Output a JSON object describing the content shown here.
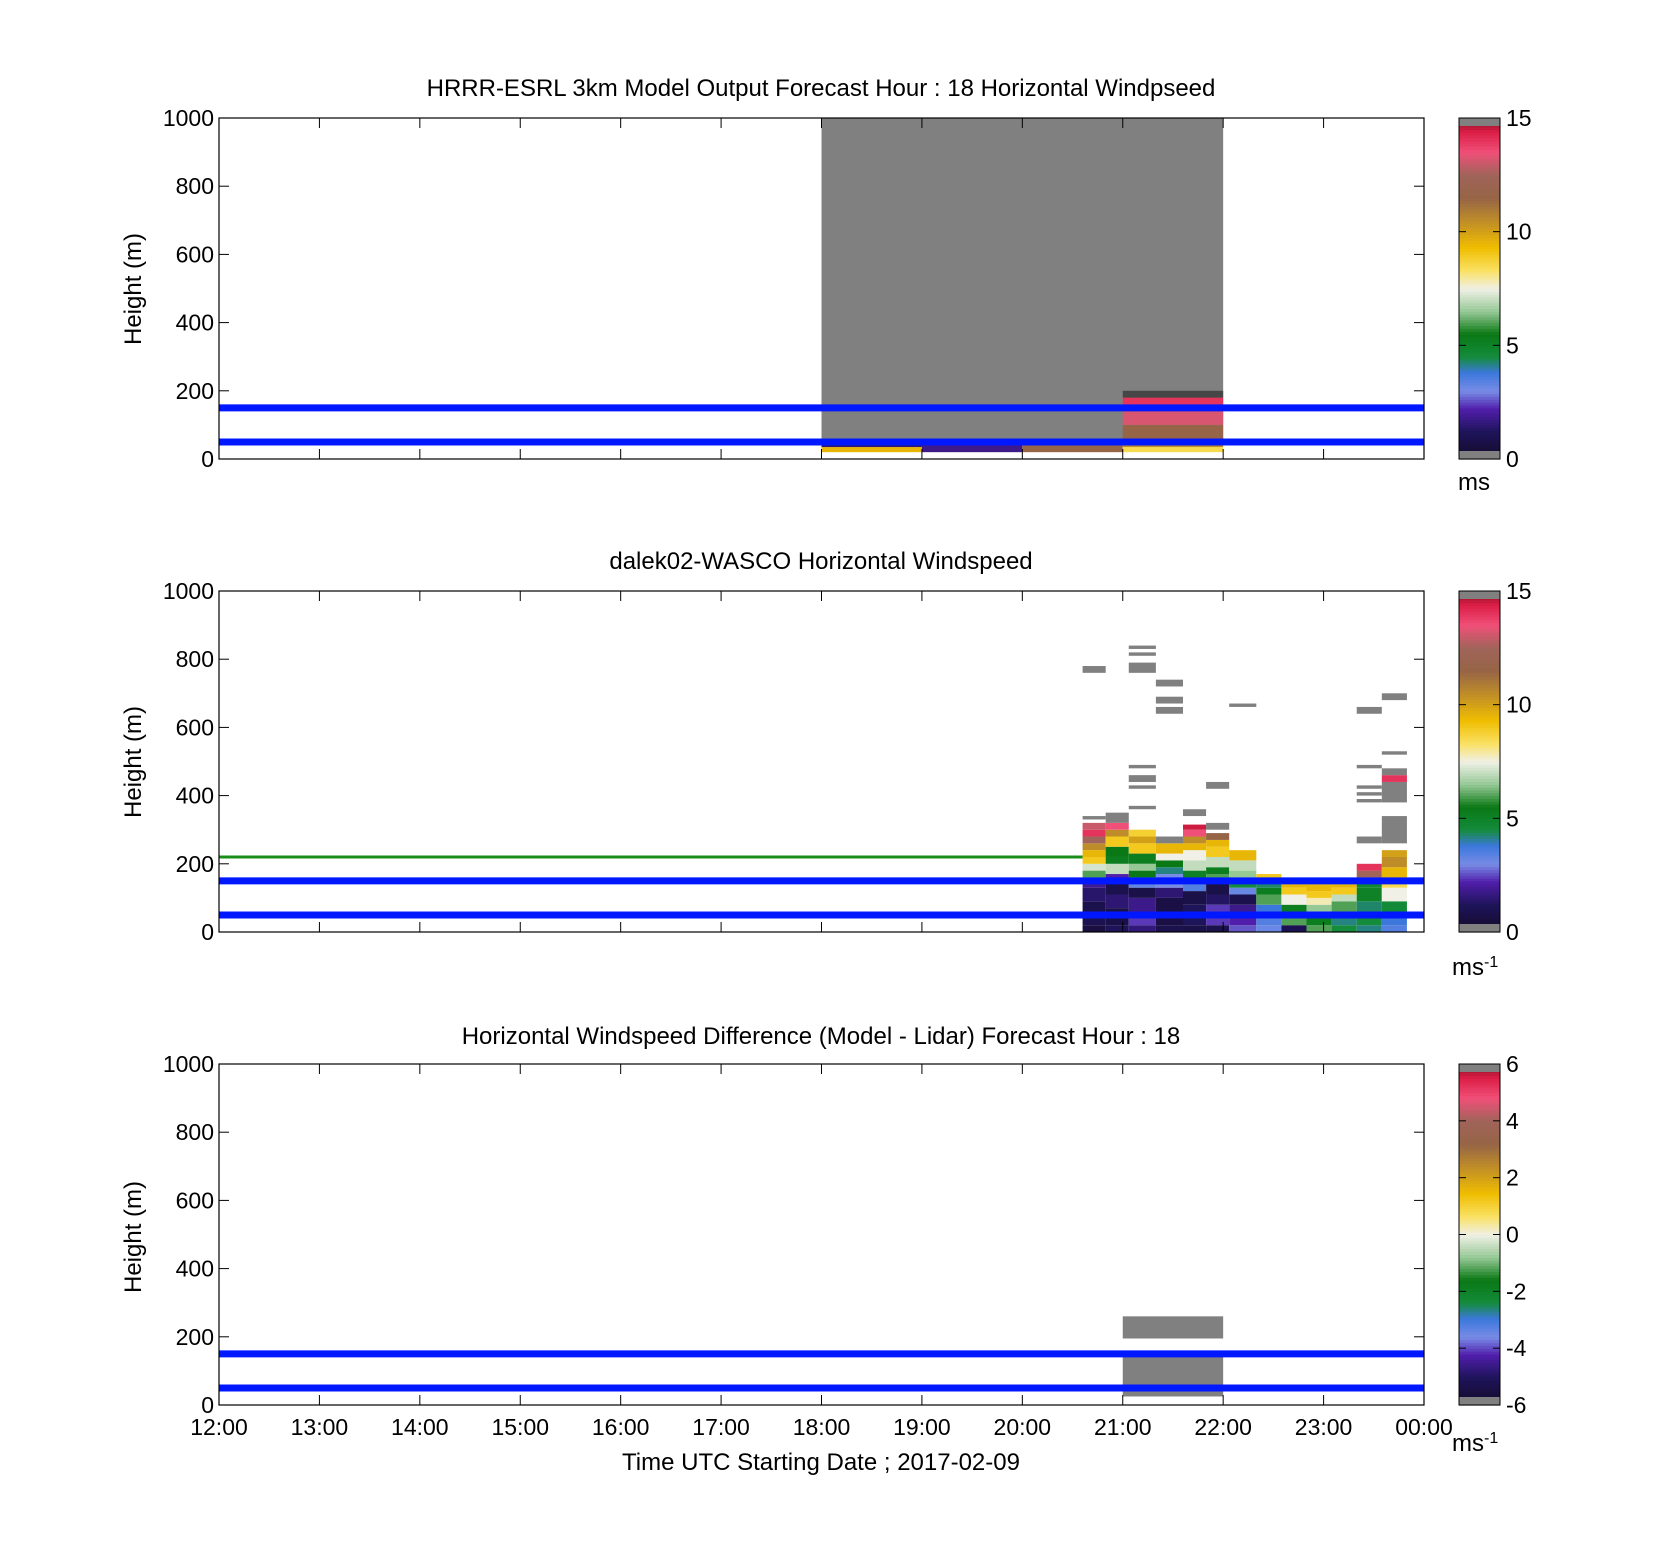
{
  "figure": {
    "shared_xlabel": "Time UTC  Starting Date ; 2017-02-09",
    "x_ticks": [
      "12:00",
      "13:00",
      "14:00",
      "15:00",
      "16:00",
      "17:00",
      "18:00",
      "19:00",
      "20:00",
      "21:00",
      "22:00",
      "23:00",
      "00:00"
    ],
    "y_ticks": [
      "0",
      "200",
      "400",
      "600",
      "800",
      "1000"
    ],
    "ylabel": "Height (m)",
    "reference_lines_m": [
      50,
      150
    ],
    "reference_line_color": "#0018ff",
    "missing_color": "#808080"
  },
  "chart_data": [
    {
      "type": "heatmap",
      "title": "HRRR-ESRL 3km Model Output   Forecast Hour : 18 Horizontal Windpseed",
      "ylabel": "Height (m)",
      "xlim_hours": [
        12,
        24
      ],
      "ylim": [
        0,
        1000
      ],
      "colorbar": {
        "min": 0,
        "max": 15,
        "ticks": [
          "0",
          "5",
          "10",
          "15"
        ],
        "label": "ms",
        "label_sup": "",
        "scheme": "speed"
      },
      "cells": [
        {
          "t0": 18,
          "t1": 22,
          "h0": 60,
          "h1": 1000,
          "v": null
        },
        {
          "t0": 18,
          "t1": 19,
          "h0": 50,
          "h1": 60,
          "v": 2.5
        },
        {
          "t0": 18,
          "t1": 19,
          "h0": 20,
          "h1": 35,
          "v": 9.5
        },
        {
          "t0": 18,
          "t1": 19,
          "h0": 35,
          "h1": 50,
          "v": 1.5
        },
        {
          "t0": 19,
          "t1": 20,
          "h0": 20,
          "h1": 45,
          "v": 1.8
        },
        {
          "t0": 19,
          "t1": 20,
          "h0": 45,
          "h1": 60,
          "v": 1.2
        },
        {
          "t0": 20,
          "t1": 21,
          "h0": 20,
          "h1": 45,
          "v": 11.5
        },
        {
          "t0": 20,
          "t1": 21,
          "h0": 45,
          "h1": 60,
          "v": 2.2
        },
        {
          "t0": 21,
          "t1": 22,
          "h0": 20,
          "h1": 35,
          "v": 8.5
        },
        {
          "t0": 21,
          "t1": 22,
          "h0": 35,
          "h1": 60,
          "v": 10.5
        },
        {
          "t0": 21,
          "t1": 22,
          "h0": 60,
          "h1": 100,
          "v": 11.5
        },
        {
          "t0": 21,
          "t1": 22,
          "h0": 100,
          "h1": 140,
          "v": 13.2
        },
        {
          "t0": 21,
          "t1": 22,
          "h0": 140,
          "h1": 180,
          "v": 14
        },
        {
          "t0": 21,
          "t1": 22,
          "h0": 180,
          "h1": 200,
          "v": 15
        }
      ]
    },
    {
      "type": "heatmap",
      "title": "dalek02-WASCO  Horizontal Windspeed",
      "ylabel": "Height (m)",
      "xlim_hours": [
        12,
        24
      ],
      "ylim": [
        0,
        1000
      ],
      "colorbar": {
        "min": 0,
        "max": 15,
        "ticks": [
          "0",
          "5",
          "10",
          "15"
        ],
        "label": "ms",
        "label_sup": "-1",
        "scheme": "speed"
      },
      "extra_line": {
        "height_m": 220,
        "t0": 12,
        "t1": 20.6,
        "color": "#1a8c1a"
      },
      "columns": [
        {
          "t0": 20.6,
          "t1": 20.83,
          "profile": [
            [
              0,
              20,
              0.6
            ],
            [
              20,
              60,
              1
            ],
            [
              60,
              90,
              0.9
            ],
            [
              90,
              130,
              1.4
            ],
            [
              130,
              160,
              1.9
            ],
            [
              160,
              180,
              6
            ],
            [
              180,
              200,
              7.2
            ],
            [
              200,
              220,
              9
            ],
            [
              220,
              240,
              9.5
            ],
            [
              240,
              260,
              10.5
            ],
            [
              260,
              280,
              12.5
            ],
            [
              280,
              300,
              14
            ],
            [
              300,
              320,
              13
            ],
            [
              330,
              340,
              null
            ],
            [
              760,
              780,
              null
            ]
          ]
        },
        {
          "t0": 20.83,
          "t1": 21.06,
          "profile": [
            [
              0,
              20,
              1.2
            ],
            [
              20,
              70,
              0.8
            ],
            [
              70,
              110,
              1.5
            ],
            [
              110,
              150,
              0.9
            ],
            [
              150,
              170,
              2.2
            ],
            [
              170,
              200,
              7
            ],
            [
              200,
              220,
              5.2
            ],
            [
              220,
              250,
              5.5
            ],
            [
              250,
              280,
              9
            ],
            [
              280,
              300,
              10.5
            ],
            [
              300,
              320,
              13.5
            ],
            [
              320,
              350,
              null
            ]
          ]
        },
        {
          "t0": 21.06,
          "t1": 21.33,
          "profile": [
            [
              0,
              20,
              1.6
            ],
            [
              20,
              60,
              2.4
            ],
            [
              60,
              100,
              1.8
            ],
            [
              100,
              130,
              0.8
            ],
            [
              130,
              160,
              3.3
            ],
            [
              160,
              180,
              5.5
            ],
            [
              180,
              200,
              6.5
            ],
            [
              200,
              230,
              5.2
            ],
            [
              230,
              260,
              9
            ],
            [
              260,
              280,
              10
            ],
            [
              280,
              300,
              8.8
            ],
            [
              360,
              370,
              null
            ],
            [
              420,
              430,
              null
            ],
            [
              440,
              460,
              null
            ],
            [
              480,
              490,
              null
            ],
            [
              760,
              790,
              null
            ],
            [
              810,
              820,
              null
            ],
            [
              830,
              840,
              null
            ]
          ]
        },
        {
          "t0": 21.33,
          "t1": 21.6,
          "profile": [
            [
              0,
              20,
              0.9
            ],
            [
              20,
              100,
              0.7
            ],
            [
              100,
              130,
              1.5
            ],
            [
              130,
              170,
              3
            ],
            [
              170,
              190,
              4.2
            ],
            [
              190,
              210,
              5.5
            ],
            [
              210,
              230,
              7.5
            ],
            [
              230,
              260,
              9.5
            ],
            [
              260,
              280,
              null
            ],
            [
              640,
              660,
              null
            ],
            [
              670,
              690,
              null
            ],
            [
              720,
              740,
              null
            ]
          ]
        },
        {
          "t0": 21.6,
          "t1": 21.83,
          "profile": [
            [
              0,
              20,
              0.8
            ],
            [
              20,
              80,
              1.2
            ],
            [
              80,
              120,
              0.8
            ],
            [
              120,
              150,
              3.5
            ],
            [
              150,
              180,
              5
            ],
            [
              180,
              210,
              7
            ],
            [
              210,
              240,
              7.5
            ],
            [
              240,
              260,
              9.5
            ],
            [
              260,
              280,
              10.5
            ],
            [
              280,
              300,
              13.5
            ],
            [
              300,
              315,
              14.5
            ],
            [
              340,
              360,
              null
            ]
          ]
        },
        {
          "t0": 21.83,
          "t1": 22.06,
          "profile": [
            [
              0,
              20,
              0.9
            ],
            [
              20,
              80,
              2.4
            ],
            [
              80,
              110,
              1.3
            ],
            [
              110,
              150,
              0.8
            ],
            [
              150,
              170,
              6
            ],
            [
              170,
              190,
              5.2
            ],
            [
              190,
              220,
              7
            ],
            [
              220,
              250,
              9
            ],
            [
              250,
              270,
              9.5
            ],
            [
              270,
              290,
              11.5
            ],
            [
              300,
              320,
              null
            ],
            [
              420,
              440,
              null
            ]
          ]
        },
        {
          "t0": 22.06,
          "t1": 22.33,
          "profile": [
            [
              0,
              20,
              2.6
            ],
            [
              20,
              50,
              2.2
            ],
            [
              50,
              80,
              1.8
            ],
            [
              80,
              110,
              0.9
            ],
            [
              110,
              130,
              3.2
            ],
            [
              130,
              160,
              4.5
            ],
            [
              160,
              180,
              6.5
            ],
            [
              180,
              210,
              7
            ],
            [
              210,
              240,
              9.5
            ],
            [
              660,
              670,
              null
            ]
          ]
        },
        {
          "t0": 22.33,
          "t1": 22.58,
          "profile": [
            [
              0,
              20,
              3.2
            ],
            [
              20,
              50,
              3.5
            ],
            [
              50,
              80,
              3.8
            ],
            [
              80,
              110,
              6
            ],
            [
              110,
              130,
              5.2
            ],
            [
              130,
              150,
              4.3
            ],
            [
              150,
              170,
              9
            ]
          ]
        },
        {
          "t0": 22.58,
          "t1": 22.83,
          "profile": [
            [
              0,
              20,
              1
            ],
            [
              20,
              50,
              6
            ],
            [
              50,
              80,
              5.2
            ],
            [
              80,
              110,
              7.5
            ],
            [
              110,
              130,
              9
            ],
            [
              130,
              140,
              9.5
            ]
          ]
        },
        {
          "t0": 22.83,
          "t1": 23.08,
          "profile": [
            [
              0,
              20,
              6
            ],
            [
              20,
              50,
              5.2
            ],
            [
              50,
              80,
              6.5
            ],
            [
              80,
              100,
              7.8
            ],
            [
              100,
              120,
              9
            ],
            [
              120,
              140,
              9.5
            ]
          ]
        },
        {
          "t0": 23.08,
          "t1": 23.33,
          "profile": [
            [
              0,
              20,
              4.5
            ],
            [
              20,
              60,
              4.2
            ],
            [
              60,
              90,
              6
            ],
            [
              90,
              110,
              7
            ],
            [
              110,
              130,
              9
            ],
            [
              130,
              140,
              9.5
            ]
          ]
        },
        {
          "t0": 23.33,
          "t1": 23.58,
          "profile": [
            [
              0,
              20,
              4.2
            ],
            [
              20,
              60,
              4.5
            ],
            [
              60,
              90,
              4.3
            ],
            [
              90,
              130,
              5
            ],
            [
              130,
              160,
              4.7
            ],
            [
              160,
              180,
              12.5
            ],
            [
              180,
              200,
              14
            ],
            [
              260,
              280,
              null
            ],
            [
              380,
              390,
              null
            ],
            [
              400,
              410,
              null
            ],
            [
              420,
              430,
              null
            ],
            [
              480,
              490,
              null
            ],
            [
              640,
              660,
              null
            ]
          ]
        },
        {
          "t0": 23.58,
          "t1": 23.83,
          "profile": [
            [
              0,
              20,
              3.5
            ],
            [
              20,
              50,
              3.8
            ],
            [
              50,
              90,
              4.6
            ],
            [
              90,
              130,
              7.5
            ],
            [
              130,
              160,
              8.5
            ],
            [
              160,
              190,
              9.5
            ],
            [
              190,
              220,
              10.5
            ],
            [
              220,
              240,
              10
            ],
            [
              260,
              340,
              null
            ],
            [
              380,
              440,
              null
            ],
            [
              440,
              460,
              14
            ],
            [
              460,
              480,
              null
            ],
            [
              520,
              530,
              null
            ],
            [
              680,
              700,
              null
            ]
          ]
        }
      ]
    },
    {
      "type": "heatmap",
      "title": "Horizontal Windspeed Difference (Model - Lidar) Forecast Hour : 18",
      "xlabel": "Time UTC  Starting Date ; 2017-02-09",
      "ylabel": "Height (m)",
      "xlim_hours": [
        12,
        24
      ],
      "ylim": [
        0,
        1000
      ],
      "colorbar": {
        "min": -6,
        "max": 6,
        "ticks": [
          "-6",
          "-4",
          "-2",
          "0",
          "2",
          "4",
          "6"
        ],
        "label": "ms",
        "label_sup": "-1",
        "scheme": "diff"
      },
      "cells": [
        {
          "t0": 21,
          "t1": 22,
          "h0": 195,
          "h1": 260,
          "v": null
        },
        {
          "t0": 21,
          "t1": 22,
          "h0": 25,
          "h1": 155,
          "v": null
        },
        {
          "t0": 21,
          "t1": 22,
          "h0": 45,
          "h1": 60,
          "v": null
        }
      ]
    }
  ]
}
